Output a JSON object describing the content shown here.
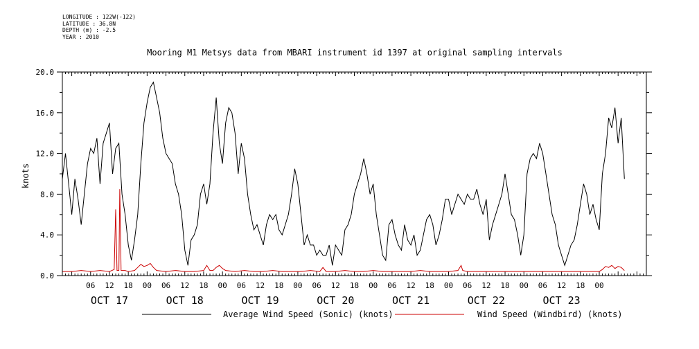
{
  "metadata": [
    "LONGITUDE : 122W(-122)",
    "LATITUDE : 36.8N",
    "DEPTH (m) : -2.5",
    "YEAR : 2010"
  ],
  "chart_data": {
    "type": "line",
    "title": "Mooring M1 Metsys data from MBARI instrument id 1397 at original sampling intervals",
    "ylabel": "knots",
    "xlabel": "",
    "ylim": [
      0,
      20
    ],
    "yticks": [
      "0.0",
      "4.0",
      "8.0",
      "12.0",
      "16.0",
      "20.0"
    ],
    "x_unit": "hours since OCT 17 00:00",
    "xlim": [
      -3,
      183
    ],
    "hour_tick_labels": [
      {
        "x": 6,
        "label": "06"
      },
      {
        "x": 12,
        "label": "12"
      },
      {
        "x": 18,
        "label": "18"
      },
      {
        "x": 24,
        "label": "00"
      },
      {
        "x": 30,
        "label": "06"
      },
      {
        "x": 36,
        "label": "12"
      },
      {
        "x": 42,
        "label": "18"
      },
      {
        "x": 48,
        "label": "00"
      },
      {
        "x": 54,
        "label": "06"
      },
      {
        "x": 60,
        "label": "12"
      },
      {
        "x": 66,
        "label": "18"
      },
      {
        "x": 72,
        "label": "00"
      },
      {
        "x": 78,
        "label": "06"
      },
      {
        "x": 84,
        "label": "12"
      },
      {
        "x": 90,
        "label": "18"
      },
      {
        "x": 96,
        "label": "00"
      },
      {
        "x": 102,
        "label": "06"
      },
      {
        "x": 108,
        "label": "12"
      },
      {
        "x": 114,
        "label": "18"
      },
      {
        "x": 120,
        "label": "00"
      },
      {
        "x": 126,
        "label": "06"
      },
      {
        "x": 132,
        "label": "12"
      },
      {
        "x": 138,
        "label": "18"
      },
      {
        "x": 144,
        "label": "00"
      },
      {
        "x": 150,
        "label": "06"
      },
      {
        "x": 156,
        "label": "12"
      },
      {
        "x": 162,
        "label": "18"
      },
      {
        "x": 168,
        "label": "00"
      }
    ],
    "day_labels": [
      {
        "x": 12,
        "label": "OCT 17"
      },
      {
        "x": 36,
        "label": "OCT 18"
      },
      {
        "x": 60,
        "label": "OCT 19"
      },
      {
        "x": 84,
        "label": "OCT 20"
      },
      {
        "x": 108,
        "label": "OCT 21"
      },
      {
        "x": 132,
        "label": "OCT 22"
      },
      {
        "x": 156,
        "label": "OCT 23"
      }
    ],
    "series": [
      {
        "name": "Average Wind Speed (Sonic) (knots)",
        "color": "#000000",
        "points": [
          [
            -3,
            9.5
          ],
          [
            -2,
            12
          ],
          [
            -1,
            9
          ],
          [
            0,
            6
          ],
          [
            1,
            9.5
          ],
          [
            2,
            7.5
          ],
          [
            3,
            5
          ],
          [
            4,
            8
          ],
          [
            5,
            11
          ],
          [
            6,
            12.5
          ],
          [
            7,
            12
          ],
          [
            8,
            13.5
          ],
          [
            9,
            9
          ],
          [
            10,
            13
          ],
          [
            11,
            14
          ],
          [
            12,
            15
          ],
          [
            13,
            10
          ],
          [
            14,
            12.5
          ],
          [
            15,
            13
          ],
          [
            16,
            8
          ],
          [
            17,
            6
          ],
          [
            18,
            3
          ],
          [
            19,
            1.5
          ],
          [
            20,
            3.5
          ],
          [
            21,
            6
          ],
          [
            22,
            11
          ],
          [
            23,
            15
          ],
          [
            24,
            17
          ],
          [
            25,
            18.5
          ],
          [
            26,
            19
          ],
          [
            27,
            17.5
          ],
          [
            28,
            16
          ],
          [
            29,
            13.5
          ],
          [
            30,
            12
          ],
          [
            31,
            11.5
          ],
          [
            32,
            11
          ],
          [
            33,
            9
          ],
          [
            34,
            8
          ],
          [
            35,
            6
          ],
          [
            36,
            2.5
          ],
          [
            37,
            1
          ],
          [
            38,
            3.5
          ],
          [
            39,
            4
          ],
          [
            40,
            5
          ],
          [
            41,
            8
          ],
          [
            42,
            9
          ],
          [
            43,
            7
          ],
          [
            44,
            9
          ],
          [
            45,
            14
          ],
          [
            46,
            17.5
          ],
          [
            47,
            13
          ],
          [
            48,
            11
          ],
          [
            49,
            15
          ],
          [
            50,
            16.5
          ],
          [
            51,
            16
          ],
          [
            52,
            14
          ],
          [
            53,
            10
          ],
          [
            54,
            13
          ],
          [
            55,
            11.5
          ],
          [
            56,
            8
          ],
          [
            57,
            6
          ],
          [
            58,
            4.5
          ],
          [
            59,
            5
          ],
          [
            60,
            4
          ],
          [
            61,
            3
          ],
          [
            62,
            5
          ],
          [
            63,
            6
          ],
          [
            64,
            5.5
          ],
          [
            65,
            6
          ],
          [
            66,
            4.5
          ],
          [
            67,
            4
          ],
          [
            68,
            5
          ],
          [
            69,
            6
          ],
          [
            70,
            8
          ],
          [
            71,
            10.5
          ],
          [
            72,
            9
          ],
          [
            73,
            6
          ],
          [
            74,
            3
          ],
          [
            75,
            4
          ],
          [
            76,
            3
          ],
          [
            77,
            3
          ],
          [
            78,
            2
          ],
          [
            79,
            2.5
          ],
          [
            80,
            2
          ],
          [
            81,
            2
          ],
          [
            82,
            3
          ],
          [
            83,
            1
          ],
          [
            84,
            3
          ],
          [
            85,
            2.5
          ],
          [
            86,
            2
          ],
          [
            87,
            4.5
          ],
          [
            88,
            5
          ],
          [
            89,
            6
          ],
          [
            90,
            8
          ],
          [
            91,
            9
          ],
          [
            92,
            10
          ],
          [
            93,
            11.5
          ],
          [
            94,
            10
          ],
          [
            95,
            8
          ],
          [
            96,
            9
          ],
          [
            97,
            6
          ],
          [
            98,
            4
          ],
          [
            99,
            2
          ],
          [
            100,
            1.5
          ],
          [
            101,
            5
          ],
          [
            102,
            5.5
          ],
          [
            103,
            4
          ],
          [
            104,
            3
          ],
          [
            105,
            2.5
          ],
          [
            106,
            5
          ],
          [
            107,
            3.5
          ],
          [
            108,
            3
          ],
          [
            109,
            4
          ],
          [
            110,
            2
          ],
          [
            111,
            2.5
          ],
          [
            112,
            4
          ],
          [
            113,
            5.5
          ],
          [
            114,
            6
          ],
          [
            115,
            5
          ],
          [
            116,
            3
          ],
          [
            117,
            4
          ],
          [
            118,
            5.5
          ],
          [
            119,
            7.5
          ],
          [
            120,
            7.5
          ],
          [
            121,
            6
          ],
          [
            122,
            7
          ],
          [
            123,
            8
          ],
          [
            124,
            7.5
          ],
          [
            125,
            7
          ],
          [
            126,
            8
          ],
          [
            127,
            7.5
          ],
          [
            128,
            7.5
          ],
          [
            129,
            8.5
          ],
          [
            130,
            7
          ],
          [
            131,
            6
          ],
          [
            132,
            7.5
          ],
          [
            133,
            3.5
          ],
          [
            134,
            5
          ],
          [
            135,
            6
          ],
          [
            136,
            7
          ],
          [
            137,
            8
          ],
          [
            138,
            10
          ],
          [
            139,
            8
          ],
          [
            140,
            6
          ],
          [
            141,
            5.5
          ],
          [
            142,
            4
          ],
          [
            143,
            2
          ],
          [
            144,
            4
          ],
          [
            145,
            10
          ],
          [
            146,
            11.5
          ],
          [
            147,
            12
          ],
          [
            148,
            11.5
          ],
          [
            149,
            13
          ],
          [
            150,
            12
          ],
          [
            151,
            10
          ],
          [
            152,
            8
          ],
          [
            153,
            6
          ],
          [
            154,
            5
          ],
          [
            155,
            3
          ],
          [
            156,
            2
          ],
          [
            157,
            1
          ],
          [
            158,
            2
          ],
          [
            159,
            3
          ],
          [
            160,
            3.5
          ],
          [
            161,
            5
          ],
          [
            162,
            7
          ],
          [
            163,
            9
          ],
          [
            164,
            8
          ],
          [
            165,
            6
          ],
          [
            166,
            7
          ],
          [
            167,
            5.5
          ],
          [
            168,
            4.5
          ],
          [
            169,
            10
          ],
          [
            170,
            12
          ],
          [
            171,
            15.5
          ],
          [
            172,
            14.5
          ],
          [
            173,
            16.5
          ],
          [
            174,
            13
          ],
          [
            175,
            15.5
          ],
          [
            176,
            9.5
          ]
        ]
      },
      {
        "name": "Wind Speed (Windbird) (knots)",
        "color": "#cc0000",
        "points": [
          [
            -3,
            0.4
          ],
          [
            0,
            0.4
          ],
          [
            3,
            0.5
          ],
          [
            6,
            0.4
          ],
          [
            9,
            0.5
          ],
          [
            12,
            0.4
          ],
          [
            13.5,
            0.6
          ],
          [
            14,
            6.5
          ],
          [
            14.4,
            0.5
          ],
          [
            15,
            0.5
          ],
          [
            15.3,
            8.5
          ],
          [
            15.7,
            0.5
          ],
          [
            17,
            0.5
          ],
          [
            18,
            0.4
          ],
          [
            20,
            0.5
          ],
          [
            21,
            0.8
          ],
          [
            22,
            1.1
          ],
          [
            23,
            0.9
          ],
          [
            24,
            1
          ],
          [
            25,
            1.2
          ],
          [
            26,
            0.8
          ],
          [
            27,
            0.5
          ],
          [
            30,
            0.4
          ],
          [
            33,
            0.5
          ],
          [
            36,
            0.4
          ],
          [
            39,
            0.4
          ],
          [
            42,
            0.5
          ],
          [
            43,
            1
          ],
          [
            44,
            0.5
          ],
          [
            45,
            0.5
          ],
          [
            46,
            0.8
          ],
          [
            47,
            1
          ],
          [
            48,
            0.7
          ],
          [
            49,
            0.5
          ],
          [
            52,
            0.4
          ],
          [
            55,
            0.5
          ],
          [
            58,
            0.4
          ],
          [
            61,
            0.4
          ],
          [
            64,
            0.5
          ],
          [
            67,
            0.4
          ],
          [
            70,
            0.4
          ],
          [
            73,
            0.4
          ],
          [
            76,
            0.5
          ],
          [
            79,
            0.4
          ],
          [
            80,
            0.8
          ],
          [
            81,
            0.4
          ],
          [
            84,
            0.4
          ],
          [
            87,
            0.5
          ],
          [
            90,
            0.4
          ],
          [
            93,
            0.4
          ],
          [
            96,
            0.5
          ],
          [
            99,
            0.4
          ],
          [
            102,
            0.4
          ],
          [
            105,
            0.4
          ],
          [
            108,
            0.4
          ],
          [
            111,
            0.5
          ],
          [
            114,
            0.4
          ],
          [
            117,
            0.4
          ],
          [
            120,
            0.4
          ],
          [
            123,
            0.5
          ],
          [
            124,
            1
          ],
          [
            124.5,
            0.5
          ],
          [
            126,
            0.4
          ],
          [
            129,
            0.4
          ],
          [
            132,
            0.4
          ],
          [
            135,
            0.4
          ],
          [
            138,
            0.4
          ],
          [
            141,
            0.4
          ],
          [
            144,
            0.4
          ],
          [
            147,
            0.4
          ],
          [
            150,
            0.4
          ],
          [
            153,
            0.4
          ],
          [
            156,
            0.4
          ],
          [
            159,
            0.4
          ],
          [
            162,
            0.4
          ],
          [
            165,
            0.4
          ],
          [
            168,
            0.4
          ],
          [
            169,
            0.6
          ],
          [
            170,
            0.9
          ],
          [
            171,
            0.8
          ],
          [
            172,
            1
          ],
          [
            173,
            0.7
          ],
          [
            174,
            0.9
          ],
          [
            175,
            0.8
          ],
          [
            176,
            0.5
          ]
        ]
      }
    ]
  }
}
